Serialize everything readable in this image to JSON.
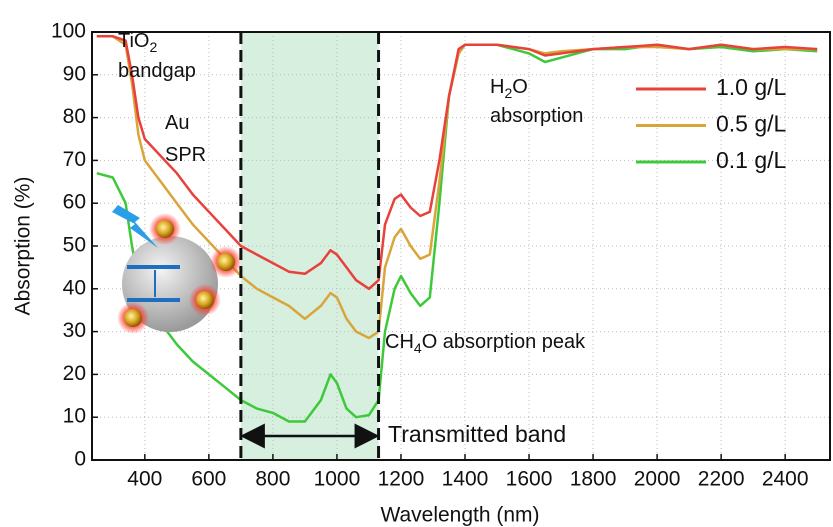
{
  "chart_data": {
    "type": "line",
    "x_label": "Wavelength (nm)",
    "y_label": "Absorption (%)",
    "x": [
      250,
      300,
      340,
      360,
      380,
      400,
      450,
      500,
      550,
      600,
      650,
      700,
      750,
      800,
      850,
      900,
      950,
      980,
      1000,
      1030,
      1060,
      1100,
      1130,
      1150,
      1180,
      1200,
      1230,
      1260,
      1290,
      1320,
      1350,
      1380,
      1400,
      1500,
      1600,
      1650,
      1700,
      1800,
      1900,
      2000,
      2100,
      2200,
      2300,
      2400,
      2500
    ],
    "series": [
      {
        "name": "1.0 g/L",
        "color": "#e8413c",
        "values": [
          99,
          99,
          98,
          90,
          80,
          75,
          71,
          67,
          62,
          58,
          54,
          50,
          48,
          46,
          44,
          43.5,
          46,
          49,
          48,
          45,
          42,
          40,
          42,
          55,
          61,
          62,
          59,
          57,
          58,
          70,
          85,
          96,
          97,
          97,
          96,
          94.5,
          95,
          96,
          96.5,
          97,
          96,
          97,
          96,
          96.5,
          96
        ]
      },
      {
        "name": "0.5 g/L",
        "color": "#d9a53a",
        "values": [
          99,
          99,
          97,
          88,
          76,
          70,
          65,
          60,
          55,
          51,
          47,
          43,
          40,
          38,
          36,
          33,
          36,
          39,
          38,
          33,
          30,
          28.5,
          30,
          45,
          52,
          54,
          50,
          47,
          48,
          65,
          85,
          95,
          97,
          97,
          96,
          95,
          95.5,
          96,
          96.5,
          96.5,
          96,
          97,
          96,
          96,
          96
        ]
      },
      {
        "name": "0.1 g/L",
        "color": "#3ec93a",
        "values": [
          67,
          66,
          60,
          50,
          42,
          38,
          32,
          27,
          23,
          20,
          17,
          14,
          12,
          11,
          9,
          9,
          14,
          20,
          18,
          12,
          10,
          10.5,
          14,
          30,
          40,
          43,
          39,
          36,
          38,
          60,
          85,
          95,
          97,
          97,
          95,
          93,
          94,
          96,
          96,
          97,
          96,
          96.5,
          95.5,
          96,
          95.5
        ]
      }
    ],
    "xlim": [
      235,
      2540
    ],
    "ylim": [
      0,
      100
    ],
    "xticks": [
      400,
      600,
      800,
      1000,
      1200,
      1400,
      1600,
      1800,
      2000,
      2200,
      2400
    ],
    "yticks": [
      0,
      10,
      20,
      30,
      40,
      50,
      60,
      70,
      80,
      90,
      100
    ],
    "grid": true,
    "legend": "upper right",
    "shaded_band": [
      700,
      1130
    ],
    "shade_color": "#d6efdf",
    "annotations": [
      {
        "runs": [
          {
            "t": "TiO"
          },
          {
            "sub": "2"
          }
        ]
      },
      {
        "runs": [
          {
            "t": "bandgap"
          }
        ]
      },
      {
        "runs": [
          {
            "t": "Au"
          }
        ]
      },
      {
        "runs": [
          {
            "t": "SPR"
          }
        ]
      },
      {
        "runs": [
          {
            "t": "H"
          },
          {
            "sub": "2"
          },
          {
            "t": "O"
          }
        ]
      },
      {
        "runs": [
          {
            "t": "absorption"
          }
        ]
      },
      {
        "runs": [
          {
            "t": "CH"
          },
          {
            "sub": "4"
          },
          {
            "t": "O absorption peak"
          }
        ]
      },
      {
        "runs": [
          {
            "t": "Transmitted band"
          }
        ]
      }
    ]
  }
}
